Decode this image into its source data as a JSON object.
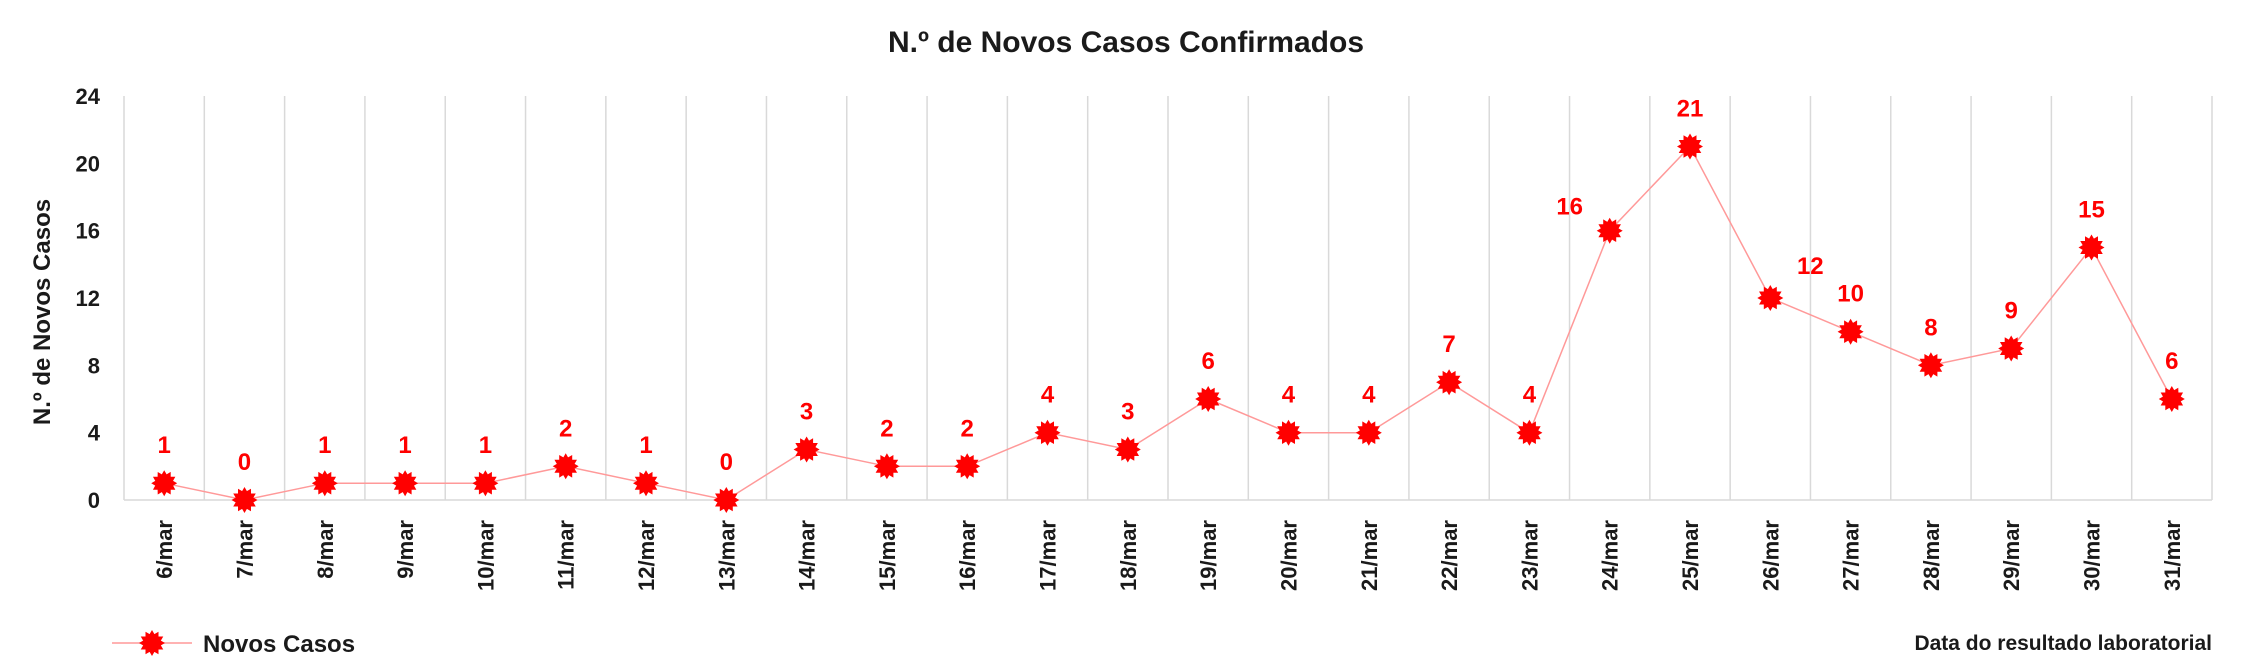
{
  "chart_data": {
    "type": "line",
    "title": "N.º de Novos Casos Confirmados",
    "ylabel": "N.º de Novos Casos",
    "xlabel": "Data do resultado laboratorial",
    "ylim": [
      0,
      24
    ],
    "yticks": [
      "0",
      "4",
      "8",
      "12",
      "16",
      "20",
      "24"
    ],
    "categories": [
      "6/mar",
      "7/mar",
      "8/mar",
      "9/mar",
      "10/mar",
      "11/mar",
      "12/mar",
      "13/mar",
      "14/mar",
      "15/mar",
      "16/mar",
      "17/mar",
      "18/mar",
      "19/mar",
      "20/mar",
      "21/mar",
      "22/mar",
      "23/mar",
      "24/mar",
      "25/mar",
      "26/mar",
      "27/mar",
      "28/mar",
      "29/mar",
      "30/mar",
      "31/mar"
    ],
    "series": [
      {
        "name": "Novos Casos",
        "values": [
          1,
          0,
          1,
          1,
          1,
          2,
          1,
          0,
          3,
          2,
          2,
          4,
          3,
          6,
          4,
          4,
          7,
          4,
          16,
          21,
          12,
          10,
          8,
          9,
          15,
          6
        ]
      }
    ],
    "grid": "vertical",
    "legend_position": "bottom-left",
    "colors": {
      "series": "#ff0000",
      "line": "#ff9999",
      "grid": "#d9d9d9"
    }
  }
}
